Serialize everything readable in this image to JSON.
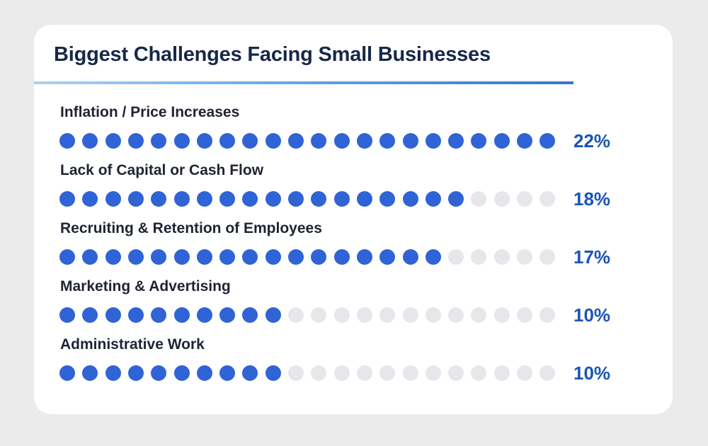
{
  "chart_data": {
    "type": "dot-bar",
    "title": "Biggest Challenges Facing Small Businesses",
    "dots_per_row": 22,
    "categories": [
      "Inflation / Price Increases",
      "Lack of Capital or Cash Flow",
      "Recruiting & Retention of Employees",
      "Marketing & Advertising",
      "Administrative Work"
    ],
    "values": [
      22,
      18,
      17,
      10,
      10
    ],
    "value_labels": [
      "22%",
      "18%",
      "17%",
      "10%",
      "10%"
    ],
    "unit": "%",
    "colors": {
      "filled": "#2f63d6",
      "empty": "#e6e7ea",
      "value_text": "#1b55b3",
      "title_text": "#172848"
    }
  }
}
